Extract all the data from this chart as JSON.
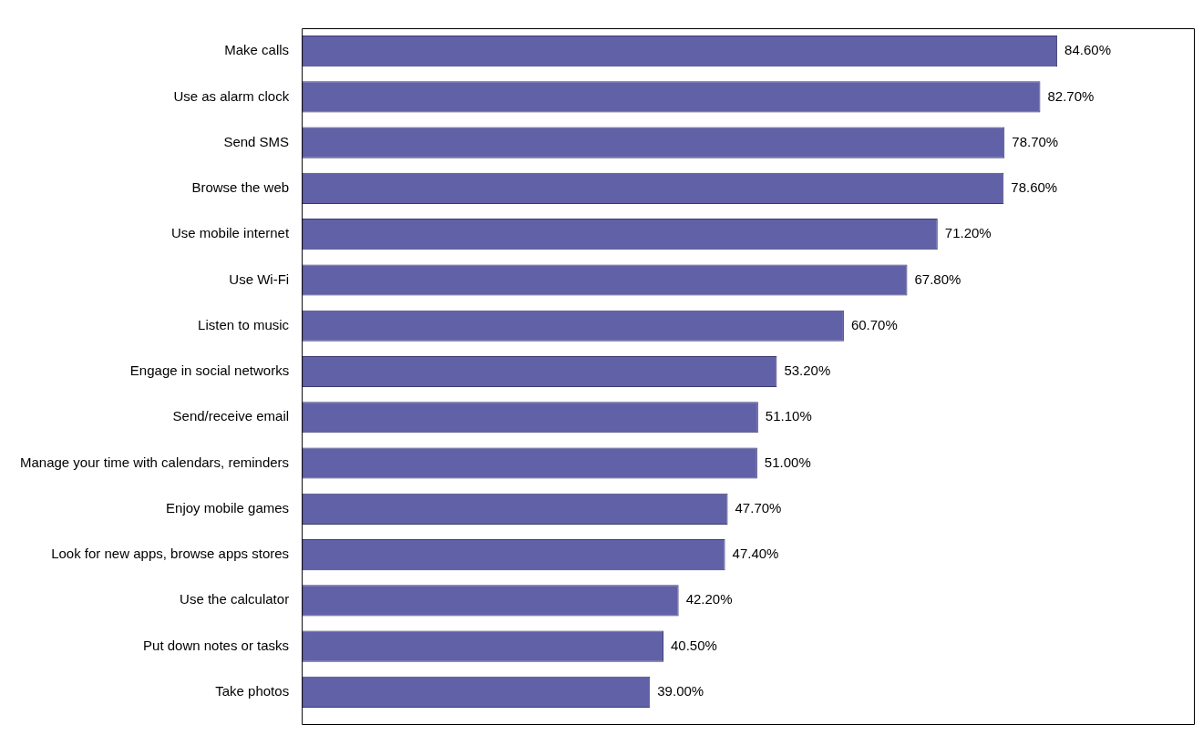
{
  "chart_data": {
    "type": "bar",
    "orientation": "horizontal",
    "categories": [
      "Make calls",
      "Use as alarm clock",
      "Send SMS",
      "Browse the web",
      "Use mobile internet",
      "Use Wi-Fi",
      "Listen to music",
      "Engage in social networks",
      "Send/receive email",
      "Manage your time with calendars, reminders",
      "Enjoy mobile games",
      "Look for new apps, browse apps stores",
      "Use the calculator",
      "Put down notes or tasks",
      "Take photos"
    ],
    "values": [
      84.6,
      82.7,
      78.7,
      78.6,
      71.2,
      67.8,
      60.7,
      53.2,
      51.1,
      51.0,
      47.7,
      47.4,
      42.2,
      40.5,
      39.0
    ],
    "value_labels": [
      "84.60%",
      "82.70%",
      "78.70%",
      "78.60%",
      "71.20%",
      "67.80%",
      "60.70%",
      "53.20%",
      "51.10%",
      "51.00%",
      "47.70%",
      "47.40%",
      "42.20%",
      "40.50%",
      "39.00%"
    ],
    "color": "#6161a8",
    "xlim": [
      0,
      100
    ],
    "tick_labels": "y"
  }
}
